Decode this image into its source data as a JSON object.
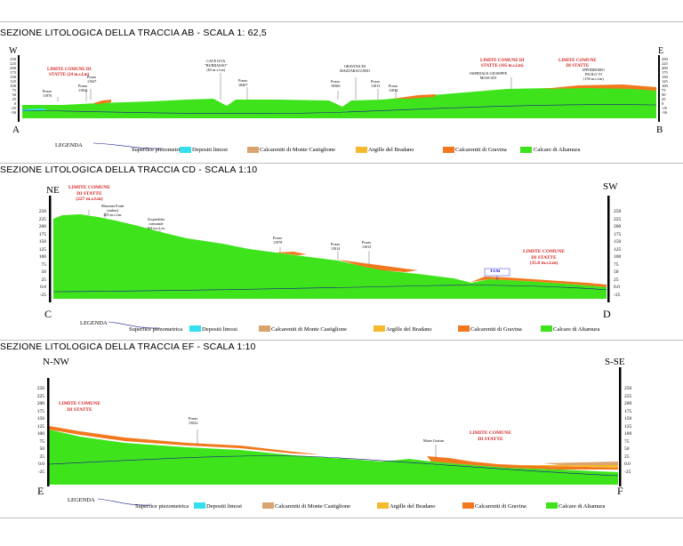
{
  "sections": [
    {
      "title": "SEZIONE LITOLOGICA  DELLA TRACCIA  AB - SCALA 1: 62,5",
      "dir_left": "W",
      "dir_right": "E",
      "letter_left": "A",
      "letter_right": "B",
      "labels": {
        "pozzo_11976": "Pozzo\n11976",
        "limite_1": "LIMITE COMUNE DI\nSTATTE (24 m.s.l.m)",
        "pozzo_11947": "Pozzo\n11947",
        "pozzo_11944": "Pozzo\n11944",
        "cave_ilva": "CAVE ILVA\n\"BURRASSO\"\n(65 m.s.l.m)",
        "pozzo_18407": "Pozzo\n18407",
        "gravina": "GRAVINA DI\nMAZZARACCHIO",
        "pozzo_18306": "Pozzo\n18306",
        "pozzo_11813": "Pozzo\n11813",
        "pozzo_11814": "Pozzo\n11814",
        "ospedale": "OSPEDALE GIUSEPPE\nMOSCATI",
        "limite_2": "LIMITE COMUNE DI\nSTATTE (105 m.s.l.m)",
        "limite_3": "LIMITE COMUNE\nDI STATTE",
        "ipodromo": "IPPODROMO\nPAOLO VI\n(150 m.s.l.m)"
      },
      "ticks": [
        "250",
        "225",
        "200",
        "175",
        "150",
        "125",
        "100",
        "75",
        "50",
        "25",
        "0",
        "-25",
        "-50"
      ]
    },
    {
      "title": "SEZIONE LITOLOGICA DELLA TRACCIA  CD  - SCALA 1:10",
      "dir_left": "NE",
      "dir_right": "SW",
      "letter_left": "C",
      "letter_right": "D",
      "labels": {
        "limite_1": "LIMITE COMUNE\nDI STATTE\n(227 m.s.l.m)",
        "masseria": "Masseria Frutti\n(radars)\n205 m.s.l.m.",
        "acquedotto": "Acquedotto\ncomunale\n164 m.s.l.m.",
        "pozzo_11978": "Pozzo\n11978",
        "pozzo_11814": "Pozzo\n11814",
        "pozzo_11813": "Pozzo\n11813",
        "ts": "T.S.94",
        "limite_2": "LIMITE COMUNE\nDI STATTE\n(35.8 m.s.l.m)"
      },
      "ticks": [
        "250",
        "225",
        "200",
        "175",
        "150",
        "125",
        "100",
        "75",
        "50",
        "25",
        "0.0",
        "-25"
      ]
    },
    {
      "title": "SEZIONE LITOLOGICA DELLA TRACCIA  EF - SCALA 1:10",
      "dir_left": "N-NW",
      "dir_right": "S-SE",
      "letter_left": "E",
      "letter_right": "F",
      "labels": {
        "limite_1": "LIMITE COMUNE\nDI STATTE",
        "pozzo_15632": "Pozzo\n15632",
        "mater_gratiae": "Mater Gratiae",
        "limite_2": "LIMITE COMUNE\nDI STATTE"
      },
      "ticks": [
        "250",
        "225",
        "200",
        "175",
        "150",
        "125",
        "100",
        "75",
        "50",
        "25",
        "0.0",
        "-25"
      ]
    }
  ],
  "legend": {
    "title": "LEGENDA",
    "items": [
      {
        "label": "Superfice piezometrica",
        "color": "#1a1a8c"
      },
      {
        "label": "Depositi limosi",
        "color": "#34e0f0"
      },
      {
        "label": "Calcareniti di Monte Castiglione",
        "color": "#d9a46e"
      },
      {
        "label": "Argille del Bradano",
        "color": "#f5b92e"
      },
      {
        "label": "Calcareniti di Gravina",
        "color": "#f2781e"
      },
      {
        "label": "Calcare di Altamura",
        "color": "#3ee31c"
      }
    ]
  },
  "colors": {
    "limestone": "#3ee31c",
    "gravina": "#f2781e",
    "monte_castiglione": "#d9a46e",
    "bradano": "#f5b92e",
    "limosi": "#34e0f0",
    "piezometric": "#1a1a8c",
    "limite_red": "#d2231f"
  }
}
